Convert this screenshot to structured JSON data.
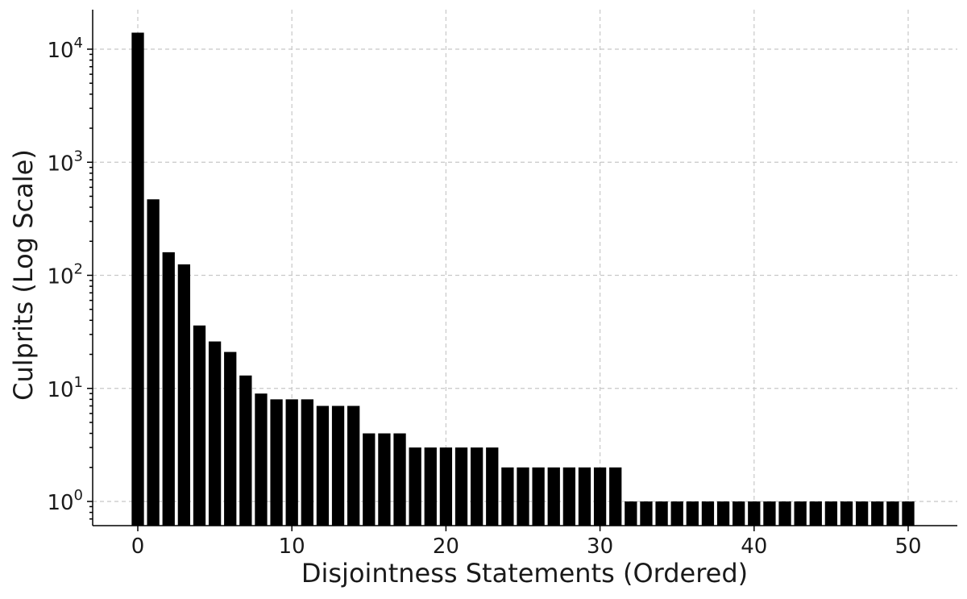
{
  "chart_data": {
    "type": "bar",
    "title": "",
    "xlabel": "Disjointness Statements (Ordered)",
    "ylabel": "Culprits (Log Scale)",
    "yscale": "log",
    "ylim": [
      0.6,
      18000
    ],
    "xlim": [
      -3,
      53
    ],
    "grid": true,
    "x": [
      0,
      1,
      2,
      3,
      4,
      5,
      6,
      7,
      8,
      9,
      10,
      11,
      12,
      13,
      14,
      15,
      16,
      17,
      18,
      19,
      20,
      21,
      22,
      23,
      24,
      25,
      26,
      27,
      28,
      29,
      30,
      31,
      32,
      33,
      34,
      35,
      36,
      37,
      38,
      39,
      40,
      41,
      42,
      43,
      44,
      45,
      46,
      47,
      48,
      49,
      50
    ],
    "values": [
      14000,
      470,
      160,
      125,
      36,
      26,
      21,
      13,
      9,
      8,
      8,
      8,
      7,
      7,
      7,
      4,
      4,
      4,
      3,
      3,
      3,
      3,
      3,
      3,
      2,
      2,
      2,
      2,
      2,
      2,
      2,
      2,
      1,
      1,
      1,
      1,
      1,
      1,
      1,
      1,
      1,
      1,
      1,
      1,
      1,
      1,
      1,
      1,
      1,
      1,
      1
    ],
    "xticks": [
      "0",
      "10",
      "20",
      "30",
      "40",
      "50"
    ],
    "yticks": [
      {
        "base": "10",
        "exp": "0"
      },
      {
        "base": "10",
        "exp": "1"
      },
      {
        "base": "10",
        "exp": "2"
      },
      {
        "base": "10",
        "exp": "3"
      },
      {
        "base": "10",
        "exp": "4"
      }
    ]
  }
}
